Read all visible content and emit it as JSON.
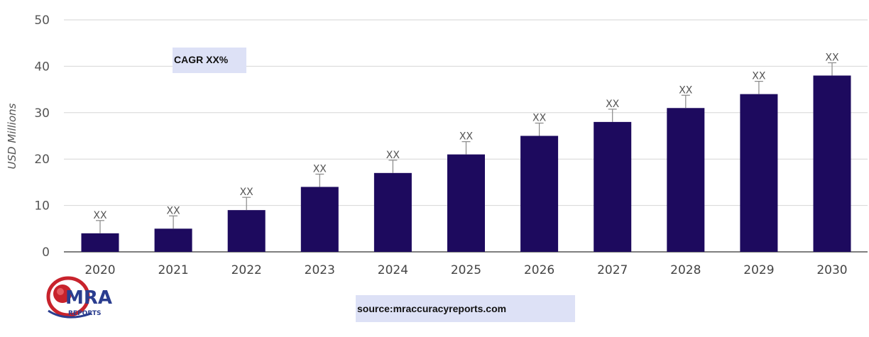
{
  "chart_data": {
    "type": "bar",
    "categories": [
      "2020",
      "2021",
      "2022",
      "2023",
      "2024",
      "2025",
      "2026",
      "2027",
      "2028",
      "2029",
      "2030"
    ],
    "values": [
      4,
      5,
      9,
      14,
      17,
      21,
      25,
      28,
      31,
      34,
      38
    ],
    "data_labels": [
      "XX",
      "XX",
      "XX",
      "XX",
      "XX",
      "XX",
      "XX",
      "XX",
      "XX",
      "XX",
      "XX"
    ],
    "ylabel": "USD Millions",
    "ylim": [
      0,
      50
    ],
    "yticks": [
      0,
      10,
      20,
      30,
      40,
      50
    ],
    "grid": true,
    "bar_color": "#1d0a5e",
    "error_bar_color": "#888888"
  },
  "annotation": {
    "text": "CAGR XX%"
  },
  "source": {
    "text": "source:mraccuracyreports.com"
  },
  "logo": {
    "top": "MRA",
    "bottom": "REPORTS",
    "colors": {
      "red": "#c8232c",
      "blue": "#2a3d8f"
    }
  }
}
